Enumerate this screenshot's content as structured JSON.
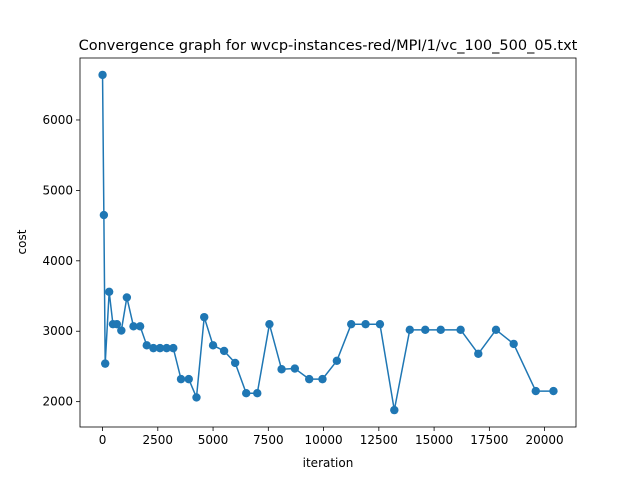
{
  "chart_data": {
    "type": "line",
    "title": "Convergence graph for wvcp-instances-red/MPI/1/vc_100_500_05.txt",
    "xlabel": "iteration",
    "ylabel": "cost",
    "xlim": [
      -1020,
      21420
    ],
    "ylim": [
      1640,
      6880
    ],
    "xticks": [
      0,
      2500,
      5000,
      7500,
      10000,
      12500,
      15000,
      17500,
      20000
    ],
    "xtick_labels": [
      "0",
      "2500",
      "5000",
      "7500",
      "10000",
      "12500",
      "15000",
      "17500",
      "20000"
    ],
    "yticks": [
      2000,
      3000,
      4000,
      5000,
      6000
    ],
    "ytick_labels": [
      "2000",
      "3000",
      "4000",
      "5000",
      "6000"
    ],
    "grid": false,
    "color": "#1f77b4",
    "series": [
      {
        "name": "cost",
        "marker": "circle",
        "x": [
          0,
          60,
          120,
          300,
          470,
          650,
          850,
          1100,
          1400,
          1700,
          2000,
          2300,
          2600,
          2900,
          3200,
          3550,
          3900,
          4250,
          4600,
          5000,
          5500,
          6000,
          6500,
          7000,
          7550,
          8100,
          8700,
          9350,
          9950,
          10600,
          11250,
          11900,
          12550,
          13200,
          13900,
          14600,
          15300,
          16200,
          17000,
          17800,
          18600,
          19600,
          20400
        ],
        "y": [
          6640,
          4650,
          2540,
          3560,
          3100,
          3100,
          3010,
          3480,
          3070,
          3070,
          2800,
          2760,
          2760,
          2760,
          2760,
          2320,
          2320,
          2060,
          3200,
          2800,
          2720,
          2550,
          2120,
          2120,
          3100,
          2460,
          2470,
          2320,
          2320,
          2580,
          3100,
          3100,
          3100,
          1880,
          3020,
          3020,
          3020,
          3020,
          2680,
          3020,
          2820,
          2150,
          2150
        ]
      }
    ]
  }
}
